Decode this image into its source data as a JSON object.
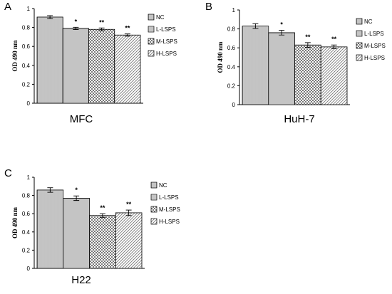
{
  "colors": {
    "bar_fill": "#ffffff",
    "pattern": "#7a7a7a",
    "outline": "#000000"
  },
  "chart_data": [
    {
      "panel": "A",
      "type": "bar",
      "title": "MFC",
      "ylabel": "OD 490 nm",
      "ylim": [
        0,
        1
      ],
      "yticks": [
        "0",
        "0.2",
        "0.4",
        "0.6",
        "0.8",
        "1"
      ],
      "ytick_values": [
        0,
        0.2,
        0.4,
        0.6,
        0.8,
        1
      ],
      "categories": [
        "NC",
        "L-LSPS",
        "M-LSPS",
        "H-LSPS"
      ],
      "values": [
        0.91,
        0.79,
        0.78,
        0.72
      ],
      "errors": [
        0.015,
        0.012,
        0.015,
        0.012
      ],
      "significance": [
        "",
        "*",
        "**",
        "**"
      ],
      "legend": [
        "NC",
        "L-LSPS",
        "M-LSPS",
        "H-LSPS"
      ],
      "legend_position": "right"
    },
    {
      "panel": "B",
      "type": "bar",
      "title": "HuH-7",
      "ylabel": "OD 490 nm",
      "ylim": [
        0,
        1
      ],
      "yticks": [
        "0",
        "0.2",
        "0.4",
        "0.6",
        "0.8",
        "1"
      ],
      "ytick_values": [
        0,
        0.2,
        0.4,
        0.6,
        0.8,
        1
      ],
      "categories": [
        "NC",
        "L-LSPS",
        "M-LSPS",
        "H-LSPS"
      ],
      "values": [
        0.83,
        0.76,
        0.63,
        0.61
      ],
      "errors": [
        0.025,
        0.025,
        0.025,
        0.02
      ],
      "significance": [
        "",
        "*",
        "**",
        "**"
      ],
      "legend": [
        "NC",
        "L-LSPS",
        "M-LSPS",
        "H-LSPS"
      ],
      "legend_position": "right"
    },
    {
      "panel": "C",
      "type": "bar",
      "title": "H22",
      "ylabel": "OD 490 nm",
      "ylim": [
        0,
        1
      ],
      "yticks": [
        "0",
        "0.2",
        "0.4",
        "0.6",
        "0.8",
        "1"
      ],
      "ytick_values": [
        0,
        0.2,
        0.4,
        0.6,
        0.8,
        1
      ],
      "categories": [
        "NC",
        "L-LSPS",
        "M-LSPS",
        "H-LSPS"
      ],
      "values": [
        0.86,
        0.77,
        0.58,
        0.61
      ],
      "errors": [
        0.025,
        0.025,
        0.02,
        0.03
      ],
      "significance": [
        "",
        "*",
        "**",
        "**"
      ],
      "legend": [
        "NC",
        "L-LSPS",
        "M-LSPS",
        "H-LSPS"
      ],
      "legend_position": "right"
    }
  ]
}
